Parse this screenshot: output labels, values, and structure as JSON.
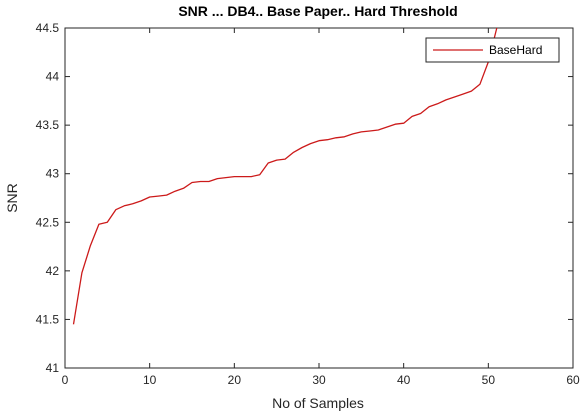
{
  "chart_data": {
    "type": "line",
    "title": "SNR ... DB4.. Base Paper.. Hard Threshold",
    "xlabel": "No of Samples",
    "ylabel": "SNR",
    "xlim": [
      0,
      60
    ],
    "ylim": [
      41,
      44.5
    ],
    "xticks": [
      0,
      10,
      20,
      30,
      40,
      50,
      60
    ],
    "yticks": [
      41,
      41.5,
      42,
      42.5,
      43,
      43.5,
      44,
      44.5
    ],
    "xtick_labels": [
      "0",
      "10",
      "20",
      "30",
      "40",
      "50",
      "60"
    ],
    "ytick_labels": [
      "41",
      "41.5",
      "42",
      "42.5",
      "43",
      "43.5",
      "44",
      "44.5"
    ],
    "grid": false,
    "box": true,
    "legend_position": "top-right",
    "series": [
      {
        "name": "BaseHard",
        "color": "#cc1a1a",
        "x": [
          1,
          2,
          3,
          4,
          5,
          6,
          7,
          8,
          9,
          10,
          11,
          12,
          13,
          14,
          15,
          16,
          17,
          18,
          19,
          20,
          21,
          22,
          23,
          24,
          25,
          26,
          27,
          28,
          29,
          30,
          31,
          32,
          33,
          34,
          35,
          36,
          37,
          38,
          39,
          40,
          41,
          42,
          43,
          44,
          45,
          46,
          47,
          48,
          49,
          50,
          51
        ],
        "values": [
          41.45,
          41.98,
          42.26,
          42.48,
          42.5,
          42.63,
          42.67,
          42.69,
          42.72,
          42.76,
          42.77,
          42.78,
          42.82,
          42.85,
          42.91,
          42.92,
          42.92,
          42.95,
          42.96,
          42.97,
          42.97,
          42.97,
          42.99,
          43.11,
          43.14,
          43.15,
          43.22,
          43.27,
          43.31,
          43.34,
          43.35,
          43.37,
          43.38,
          43.41,
          43.43,
          43.44,
          43.45,
          43.48,
          43.51,
          43.52,
          43.59,
          43.62,
          43.69,
          43.72,
          43.76,
          43.79,
          43.82,
          43.85,
          43.92,
          44.15,
          44.5
        ]
      }
    ]
  }
}
